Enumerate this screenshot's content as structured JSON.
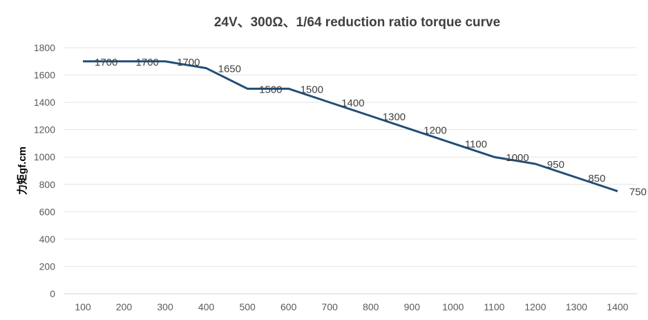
{
  "chart_data": {
    "type": "line",
    "title": "24V、300Ω、1/64 reduction ratio torque curve",
    "xlabel": "",
    "ylabel": "力矩gf.cm",
    "categories": [
      "100",
      "200",
      "300",
      "400",
      "500",
      "600",
      "700",
      "800",
      "900",
      "1000",
      "1100",
      "1200",
      "1300",
      "1400"
    ],
    "series": [
      {
        "values": [
          1700,
          1700,
          1700,
          1650,
          1500,
          1500,
          1400,
          1300,
          1200,
          1100,
          1000,
          950,
          850,
          750
        ],
        "color": "#1F4E79"
      }
    ],
    "ylim": [
      0,
      1800
    ],
    "yticks": [
      "0",
      "200",
      "400",
      "600",
      "800",
      "1000",
      "1200",
      "1400",
      "1600",
      "1800"
    ],
    "grid": true,
    "legend": "none",
    "data_labels": true
  }
}
